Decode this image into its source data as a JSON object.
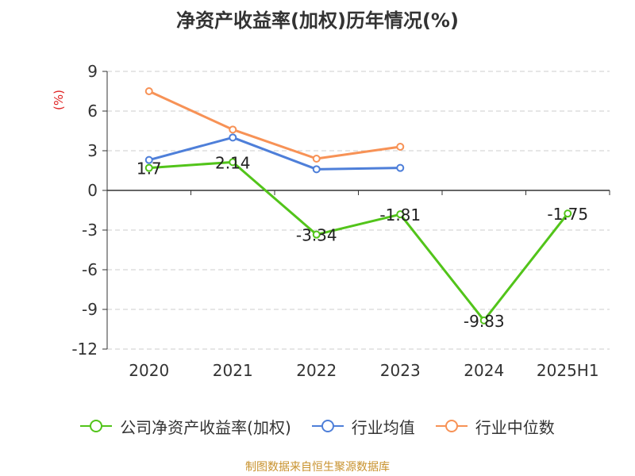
{
  "chart_data": {
    "type": "line",
    "title": "净资产收益率(加权)历年情况(%)",
    "ylabel": "(%)",
    "xlabel": "",
    "categories": [
      "2020",
      "2021",
      "2022",
      "2023",
      "2024",
      "2025H1"
    ],
    "ylim": [
      -12,
      9
    ],
    "yticks": [
      9,
      6,
      3,
      0,
      -3,
      -6,
      -9,
      -12
    ],
    "grid": true,
    "legend_position": "bottom",
    "series": [
      {
        "name": "公司净资产收益率(加权)",
        "color": "#52c41a",
        "values": [
          1.7,
          2.14,
          -3.34,
          -1.81,
          -9.83,
          -1.75
        ],
        "labels": [
          "1.7",
          "2.14",
          "-3.34",
          "-1.81",
          "-9.83",
          "-1.75"
        ]
      },
      {
        "name": "行业均值",
        "color": "#4e7fd9",
        "values": [
          2.3,
          4.0,
          1.6,
          1.7,
          null,
          null
        ]
      },
      {
        "name": "行业中位数",
        "color": "#f79256",
        "values": [
          7.5,
          4.6,
          2.4,
          3.3,
          null,
          null
        ]
      }
    ]
  },
  "source_note": "制图数据来自恒生聚源数据库",
  "colors": {
    "ylabel": "#e02020",
    "source": "#c8922e",
    "axis": "#333333",
    "grid": "#cccccc"
  }
}
